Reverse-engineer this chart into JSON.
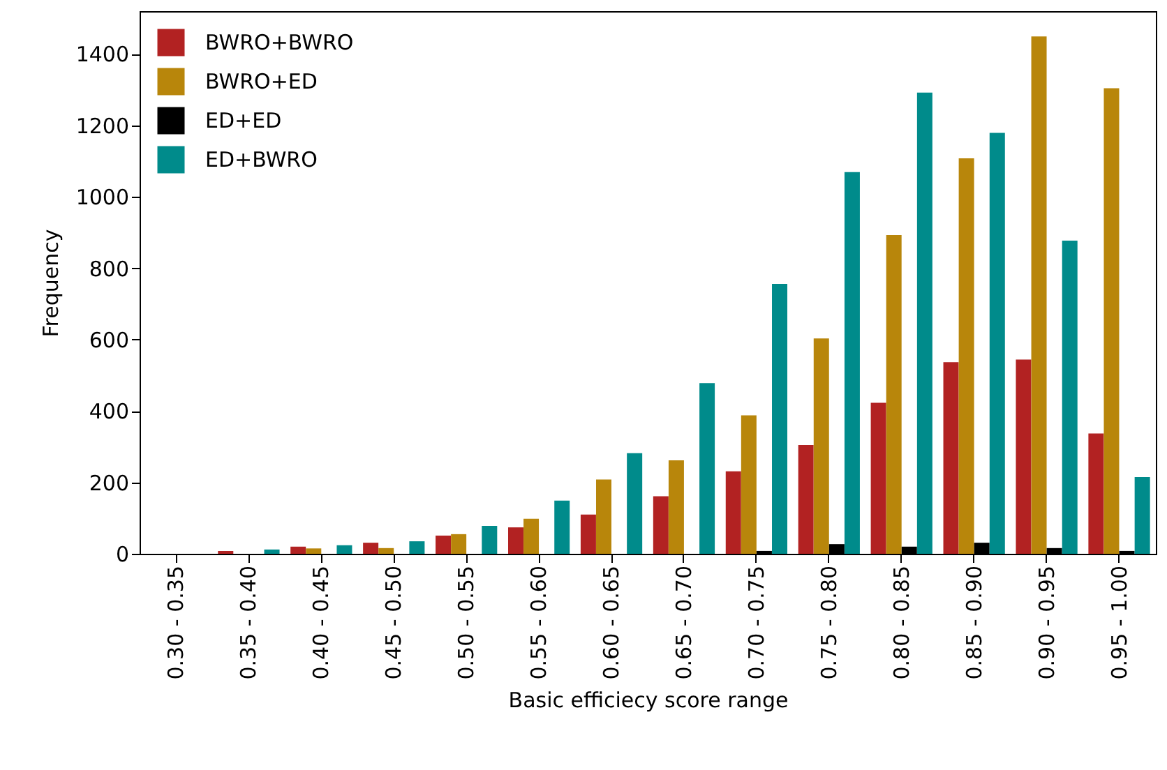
{
  "chart_data": {
    "type": "bar",
    "xlabel": "Basic efficiecy score range",
    "ylabel": "Frequency",
    "categories": [
      "0.30 - 0.35",
      "0.35 - 0.40",
      "0.40 - 0.45",
      "0.45 - 0.50",
      "0.50 - 0.55",
      "0.55 - 0.60",
      "0.60 - 0.65",
      "0.65 - 0.70",
      "0.70 - 0.75",
      "0.75 - 0.80",
      "0.80 - 0.85",
      "0.85 - 0.90",
      "0.90 - 0.95",
      "0.95 - 1.00"
    ],
    "series": [
      {
        "name": "BWRO+BWRO",
        "color": "#b22222",
        "values": [
          0,
          8,
          20,
          31,
          51,
          74,
          110,
          161,
          231,
          305,
          423,
          537,
          544,
          337
        ]
      },
      {
        "name": "BWRO+ED",
        "color": "#b8860b",
        "values": [
          0,
          0,
          15,
          16,
          55,
          98,
          208,
          262,
          388,
          603,
          893,
          1108,
          1449,
          1304
        ]
      },
      {
        "name": "ED+ED",
        "color": "#000000",
        "values": [
          0,
          0,
          0,
          0,
          0,
          0,
          0,
          0,
          8,
          27,
          20,
          31,
          16,
          8
        ]
      },
      {
        "name": "ED+BWRO",
        "color": "#008b8b",
        "values": [
          0,
          12,
          24,
          35,
          78,
          149,
          282,
          478,
          756,
          1069,
          1292,
          1179,
          877,
          215
        ]
      }
    ],
    "ylim": [
      0,
      1520
    ],
    "yticks": [
      0,
      200,
      400,
      600,
      800,
      1000,
      1200,
      1400
    ],
    "grid": false,
    "legend": "top left"
  }
}
